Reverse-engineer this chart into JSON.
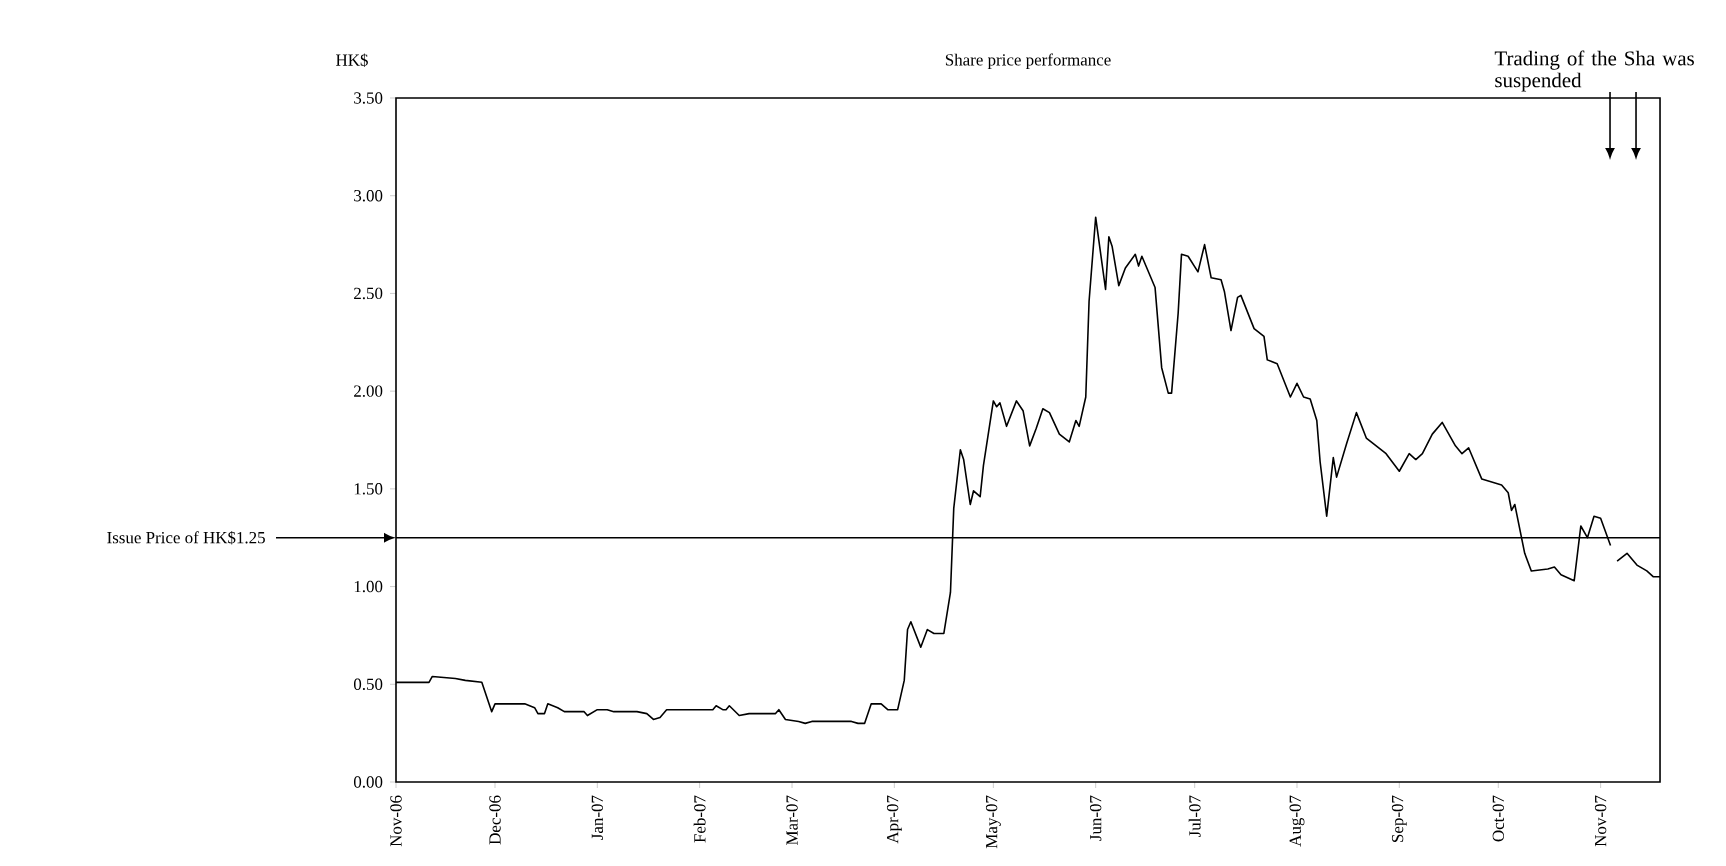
{
  "chart_data": {
    "type": "line",
    "title": "Share price performance",
    "ylabel": "HK$",
    "color": "#000000",
    "x": [
      "2006-11-01",
      "2006-11-11",
      "2006-11-12",
      "2006-11-19",
      "2006-11-22",
      "2006-11-27",
      "2006-11-30",
      "2006-12-01",
      "2006-12-10",
      "2006-12-13",
      "2006-12-14",
      "2006-12-16",
      "2006-12-17",
      "2006-12-20",
      "2006-12-22",
      "2006-12-28",
      "2006-12-29",
      "2007-01-01",
      "2007-01-04",
      "2007-01-06",
      "2007-01-13",
      "2007-01-16",
      "2007-01-18",
      "2007-01-20",
      "2007-01-22",
      "2007-02-05",
      "2007-02-06",
      "2007-02-08",
      "2007-02-09",
      "2007-02-10",
      "2007-02-13",
      "2007-02-16",
      "2007-02-24",
      "2007-02-25",
      "2007-02-27",
      "2007-03-03",
      "2007-03-05",
      "2007-03-07",
      "2007-03-19",
      "2007-03-21",
      "2007-03-23",
      "2007-03-25",
      "2007-03-28",
      "2007-03-30",
      "2007-04-02",
      "2007-04-04",
      "2007-04-05",
      "2007-04-06",
      "2007-04-09",
      "2007-04-11",
      "2007-04-13",
      "2007-04-16",
      "2007-04-18",
      "2007-04-19",
      "2007-04-21",
      "2007-04-22",
      "2007-04-24",
      "2007-04-25",
      "2007-04-27",
      "2007-04-28",
      "2007-05-01",
      "2007-05-02",
      "2007-05-03",
      "2007-05-05",
      "2007-05-08",
      "2007-05-10",
      "2007-05-12",
      "2007-05-14",
      "2007-05-16",
      "2007-05-18",
      "2007-05-21",
      "2007-05-24",
      "2007-05-26",
      "2007-05-27",
      "2007-05-29",
      "2007-05-30",
      "2007-06-01",
      "2007-06-04",
      "2007-06-05",
      "2007-06-06",
      "2007-06-08",
      "2007-06-10",
      "2007-06-13",
      "2007-06-14",
      "2007-06-15",
      "2007-06-19",
      "2007-06-21",
      "2007-06-23",
      "2007-06-24",
      "2007-06-26",
      "2007-06-27",
      "2007-06-29",
      "2007-07-02",
      "2007-07-04",
      "2007-07-06",
      "2007-07-09",
      "2007-07-10",
      "2007-07-12",
      "2007-07-14",
      "2007-07-15",
      "2007-07-19",
      "2007-07-22",
      "2007-07-23",
      "2007-07-26",
      "2007-07-30",
      "2007-08-01",
      "2007-08-03",
      "2007-08-05",
      "2007-08-07",
      "2007-08-08",
      "2007-08-10",
      "2007-08-12",
      "2007-08-13",
      "2007-08-16",
      "2007-08-19",
      "2007-08-22",
      "2007-08-25",
      "2007-08-28",
      "2007-09-01",
      "2007-09-04",
      "2007-09-06",
      "2007-09-08",
      "2007-09-11",
      "2007-09-14",
      "2007-09-18",
      "2007-09-20",
      "2007-09-22",
      "2007-09-26",
      "2007-10-02",
      "2007-10-04",
      "2007-10-05",
      "2007-10-06",
      "2007-10-09",
      "2007-10-11",
      "2007-10-16",
      "2007-10-18",
      "2007-10-20",
      "2007-10-24",
      "2007-10-26",
      "2007-10-28",
      "2007-10-30",
      "2007-11-01",
      "2007-11-04",
      "2007-11-05",
      "2007-11-06",
      "2007-11-09",
      "2007-11-12",
      "2007-11-15",
      "2007-11-17",
      "2007-11-19"
    ],
    "values": [
      0.51,
      0.51,
      0.54,
      0.53,
      0.52,
      0.51,
      0.36,
      0.4,
      0.4,
      0.38,
      0.35,
      0.35,
      0.4,
      0.38,
      0.36,
      0.36,
      0.34,
      0.37,
      0.37,
      0.36,
      0.36,
      0.35,
      0.32,
      0.33,
      0.37,
      0.37,
      0.39,
      0.37,
      0.37,
      0.39,
      0.34,
      0.35,
      0.35,
      0.37,
      0.32,
      0.31,
      0.3,
      0.31,
      0.31,
      0.3,
      0.3,
      0.4,
      0.4,
      0.37,
      0.37,
      0.52,
      0.78,
      0.82,
      0.69,
      0.78,
      0.76,
      0.76,
      0.97,
      1.4,
      1.7,
      1.65,
      1.42,
      1.49,
      1.46,
      1.62,
      1.95,
      1.92,
      1.94,
      1.82,
      1.95,
      1.9,
      1.72,
      1.81,
      1.91,
      1.89,
      1.78,
      1.74,
      1.85,
      1.82,
      1.97,
      2.46,
      2.89,
      2.52,
      2.79,
      2.74,
      2.54,
      2.63,
      2.7,
      2.64,
      2.69,
      2.53,
      2.12,
      1.99,
      1.99,
      2.4,
      2.7,
      2.69,
      2.61,
      2.75,
      2.58,
      2.57,
      2.51,
      2.31,
      2.48,
      2.49,
      2.32,
      2.28,
      2.16,
      2.14,
      1.97,
      2.04,
      1.97,
      1.96,
      1.85,
      1.64,
      1.36,
      1.66,
      1.56,
      1.73,
      1.89,
      1.76,
      1.72,
      1.68,
      1.59,
      1.68,
      1.65,
      1.68,
      1.78,
      1.84,
      1.72,
      1.68,
      1.71,
      1.55,
      1.52,
      1.48,
      1.39,
      1.42,
      1.17,
      1.08,
      1.09,
      1.1,
      1.06,
      1.03,
      1.31,
      1.25,
      1.36,
      1.35,
      1.21,
      null,
      1.13,
      1.17,
      1.11,
      1.08,
      1.05,
      1.05
    ],
    "xlim": [
      "2006-11-01",
      "2007-11-19"
    ],
    "xticks": [
      {
        "value": "2006-11-01",
        "label": "Nov-06"
      },
      {
        "value": "2006-12-01",
        "label": "Dec-06"
      },
      {
        "value": "2007-01-01",
        "label": "Jan-07"
      },
      {
        "value": "2007-02-01",
        "label": "Feb-07"
      },
      {
        "value": "2007-03-01",
        "label": "Mar-07"
      },
      {
        "value": "2007-04-01",
        "label": "Apr-07"
      },
      {
        "value": "2007-05-01",
        "label": "May-07"
      },
      {
        "value": "2007-06-01",
        "label": "Jun-07"
      },
      {
        "value": "2007-07-01",
        "label": "Jul-07"
      },
      {
        "value": "2007-08-01",
        "label": "Aug-07"
      },
      {
        "value": "2007-09-01",
        "label": "Sep-07"
      },
      {
        "value": "2007-10-01",
        "label": "Oct-07"
      },
      {
        "value": "2007-11-01",
        "label": "Nov-07"
      }
    ],
    "ylim": [
      0,
      3.5
    ],
    "yticks": [
      {
        "value": 0,
        "label": "0.00"
      },
      {
        "value": 0.5,
        "label": "0.50"
      },
      {
        "value": 1,
        "label": "1.00"
      },
      {
        "value": 1.5,
        "label": "1.50"
      },
      {
        "value": 2,
        "label": "2.00"
      },
      {
        "value": 2.5,
        "label": "2.50"
      },
      {
        "value": 3,
        "label": "3.00"
      },
      {
        "value": 3.5,
        "label": "3.50"
      }
    ],
    "ref_lines": [
      {
        "axis": "y",
        "value": 1.25,
        "label": "Issue Price of HK$1.25",
        "color": "#000000"
      }
    ],
    "annotations": [
      "Trading of the Sha was suspended"
    ]
  }
}
